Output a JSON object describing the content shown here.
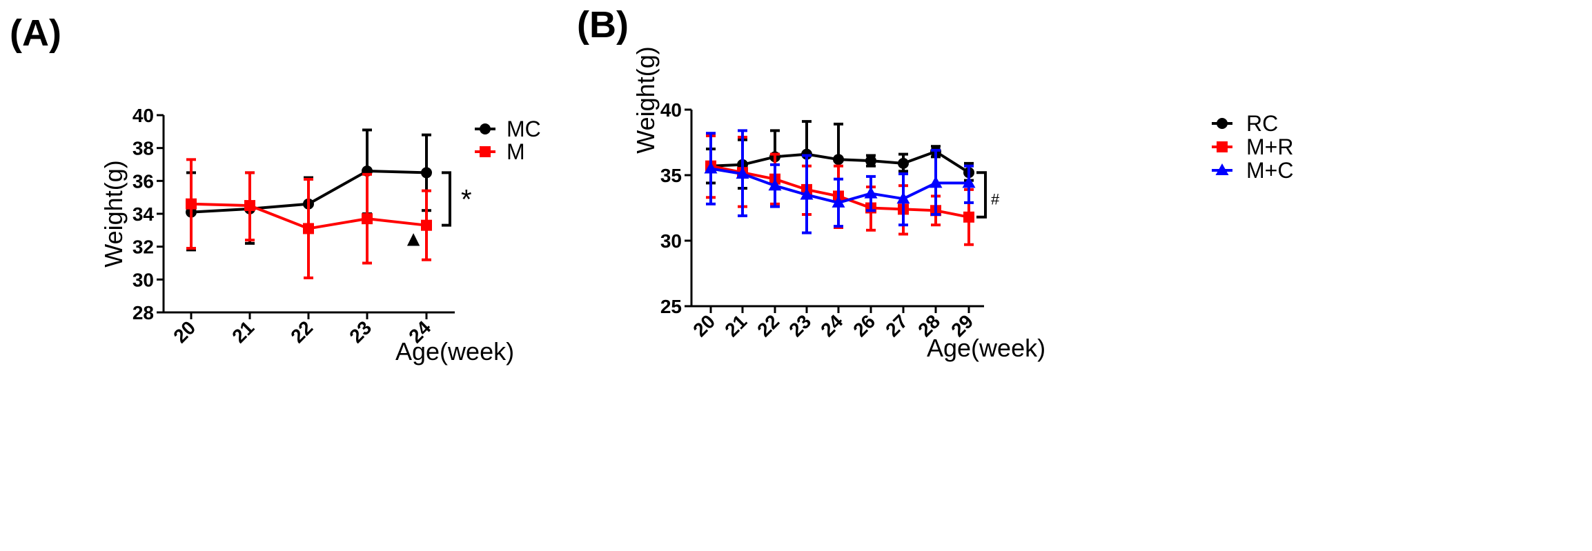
{
  "chart_data": [
    {
      "panel": "(A)",
      "type": "line",
      "ylabel": "Weight(g)",
      "xlabel": "Age(week)",
      "categories": [
        "20",
        "21",
        "22",
        "23",
        "24"
      ],
      "ylim": [
        28,
        40
      ],
      "yticks": [
        28,
        30,
        32,
        34,
        36,
        38,
        40
      ],
      "grid": false,
      "legend_position": "top-right",
      "series": [
        {
          "name": "MC",
          "color": "#000000",
          "marker": "circle",
          "values": [
            34.1,
            34.3,
            34.6,
            36.6,
            36.5
          ],
          "err_upper": [
            36.5,
            36.5,
            36.2,
            39.1,
            38.8
          ],
          "err_lower": [
            31.8,
            32.2,
            32.9,
            34.0,
            34.2
          ]
        },
        {
          "name": "M",
          "color": "#ff0000",
          "marker": "square",
          "values": [
            34.6,
            34.5,
            33.1,
            33.7,
            33.3
          ],
          "err_upper": [
            37.3,
            36.5,
            36.1,
            36.4,
            35.4
          ],
          "err_lower": [
            31.9,
            32.4,
            30.1,
            31.0,
            31.2
          ]
        }
      ],
      "annotations": {
        "significance": "*",
        "bracket_from": 36.5,
        "bracket_to": 33.3,
        "triangle_symbol": "▲",
        "triangle_category_offset": 3.78,
        "triangle_value": 32.6
      }
    },
    {
      "panel": "(B)",
      "type": "line",
      "ylabel": "Weight(g)",
      "xlabel": "Age(week)",
      "categories": [
        "20",
        "21",
        "22",
        "23",
        "24",
        "26",
        "27",
        "28",
        "29"
      ],
      "ylim": [
        25,
        40
      ],
      "yticks": [
        25,
        30,
        35,
        40
      ],
      "grid": false,
      "legend_position": "top-right",
      "series": [
        {
          "name": "RC",
          "color": "#000000",
          "marker": "circle",
          "values": [
            35.7,
            35.8,
            36.4,
            36.6,
            36.2,
            36.1,
            35.9,
            36.8,
            35.2
          ],
          "err_upper": [
            37.0,
            37.7,
            38.4,
            39.1,
            38.9,
            36.5,
            36.6,
            37.2,
            35.9
          ],
          "err_lower": [
            34.4,
            34.0,
            34.4,
            34.1,
            33.5,
            35.7,
            35.3,
            36.4,
            34.6
          ]
        },
        {
          "name": "M+R",
          "color": "#ff0000",
          "marker": "square",
          "values": [
            35.7,
            35.2,
            34.7,
            33.9,
            33.4,
            32.5,
            32.4,
            32.3,
            31.8
          ],
          "err_upper": [
            38.0,
            37.9,
            36.6,
            35.7,
            35.7,
            34.1,
            34.2,
            33.4,
            33.9
          ],
          "err_lower": [
            33.3,
            32.6,
            32.8,
            32.0,
            31.0,
            30.8,
            30.5,
            31.2,
            29.7
          ]
        },
        {
          "name": "M+C",
          "color": "#0000ff",
          "marker": "triangle",
          "values": [
            35.5,
            35.1,
            34.2,
            33.5,
            32.9,
            33.6,
            33.2,
            34.4,
            34.4
          ],
          "err_upper": [
            38.2,
            38.4,
            35.8,
            36.5,
            34.7,
            34.9,
            35.1,
            36.9,
            35.7
          ],
          "err_lower": [
            32.8,
            31.9,
            32.6,
            30.6,
            31.1,
            32.3,
            31.2,
            32.0,
            32.9
          ]
        }
      ],
      "annotations": {
        "significance": "#",
        "bracket_from": 35.2,
        "bracket_to": 31.8
      }
    }
  ]
}
